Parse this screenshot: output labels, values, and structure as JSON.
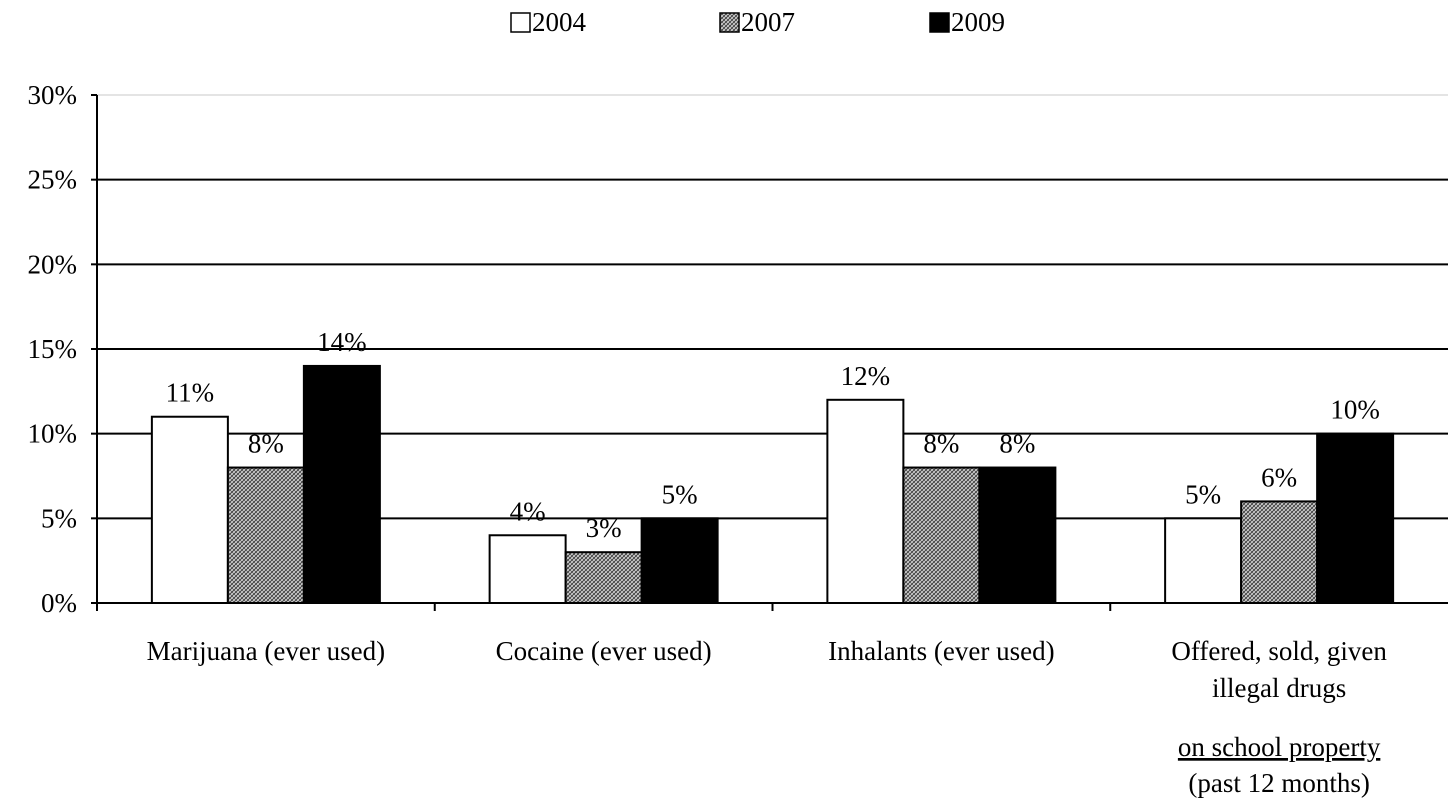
{
  "chart_data": {
    "type": "bar",
    "categories": [
      [
        "Marijuana (ever used)"
      ],
      [
        "Cocaine (ever used)"
      ],
      [
        "Inhalants (ever used)"
      ],
      [
        "Offered, sold, given",
        "illegal drugs"
      ]
    ],
    "category_note": {
      "underlined": "on school property",
      "plain": "(past 12 months)"
    },
    "series": [
      {
        "name": "2004",
        "color": "#ffffff",
        "pattern": "none",
        "values": [
          11,
          4,
          12,
          5
        ],
        "labels": [
          "11%",
          "4%",
          "12%",
          "5%"
        ]
      },
      {
        "name": "2007",
        "color": "#a0a0a0",
        "pattern": "crosshatch",
        "values": [
          8,
          3,
          8,
          6
        ],
        "labels": [
          "8%",
          "3%",
          "8%",
          "6%"
        ]
      },
      {
        "name": "2009",
        "color": "#000000",
        "pattern": "none",
        "values": [
          14,
          5,
          8,
          10
        ],
        "labels": [
          "14%",
          "5%",
          "8%",
          "10%"
        ]
      }
    ],
    "ylim": [
      0,
      30
    ],
    "yticks": [
      0,
      5,
      10,
      15,
      20,
      25,
      30
    ],
    "ytick_labels": [
      "0%",
      "5%",
      "10%",
      "15%",
      "20%",
      "25%",
      "30%"
    ],
    "grid": true,
    "legend_position": "top-center",
    "title": "",
    "xlabel": "",
    "ylabel": ""
  }
}
